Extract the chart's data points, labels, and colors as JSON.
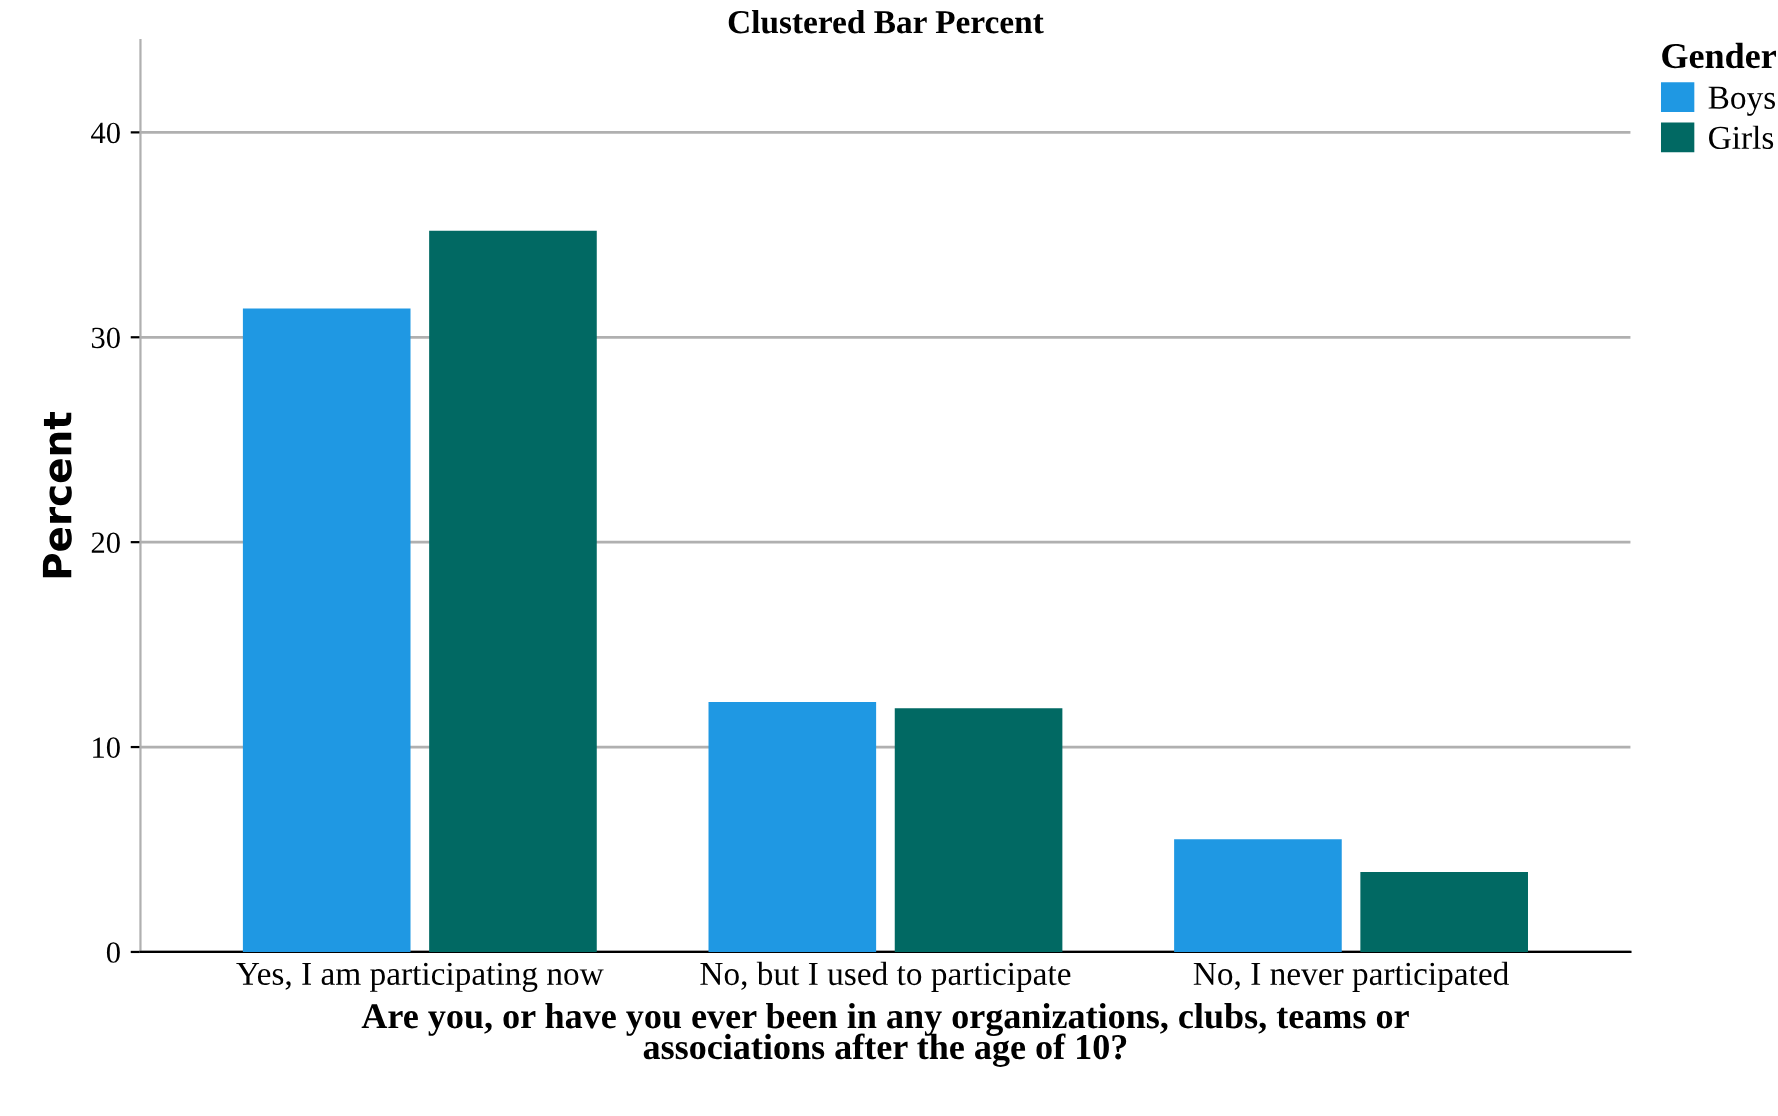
{
  "chart_data": {
    "type": "bar",
    "title": "Clustered Bar Percent",
    "xlabel": "Are you, or have you ever been in any organizations, clubs, teams or\nassociations after the age of 10?",
    "ylabel": "Percent",
    "legend_title": "Gender",
    "categories": [
      "Yes, I am participating now",
      "No, but I used to participate",
      "No, I never participated"
    ],
    "series": [
      {
        "name": "Boys",
        "color": "#1f98e3",
        "values": [
          31.4,
          12.2,
          5.5
        ]
      },
      {
        "name": "Girls",
        "color": "#016963",
        "values": [
          35.2,
          11.9,
          3.9
        ]
      }
    ],
    "ylim": [
      0,
      44.5
    ],
    "yticks": [
      0,
      10,
      20,
      30,
      40
    ],
    "grid": "y",
    "legend": "top right"
  }
}
